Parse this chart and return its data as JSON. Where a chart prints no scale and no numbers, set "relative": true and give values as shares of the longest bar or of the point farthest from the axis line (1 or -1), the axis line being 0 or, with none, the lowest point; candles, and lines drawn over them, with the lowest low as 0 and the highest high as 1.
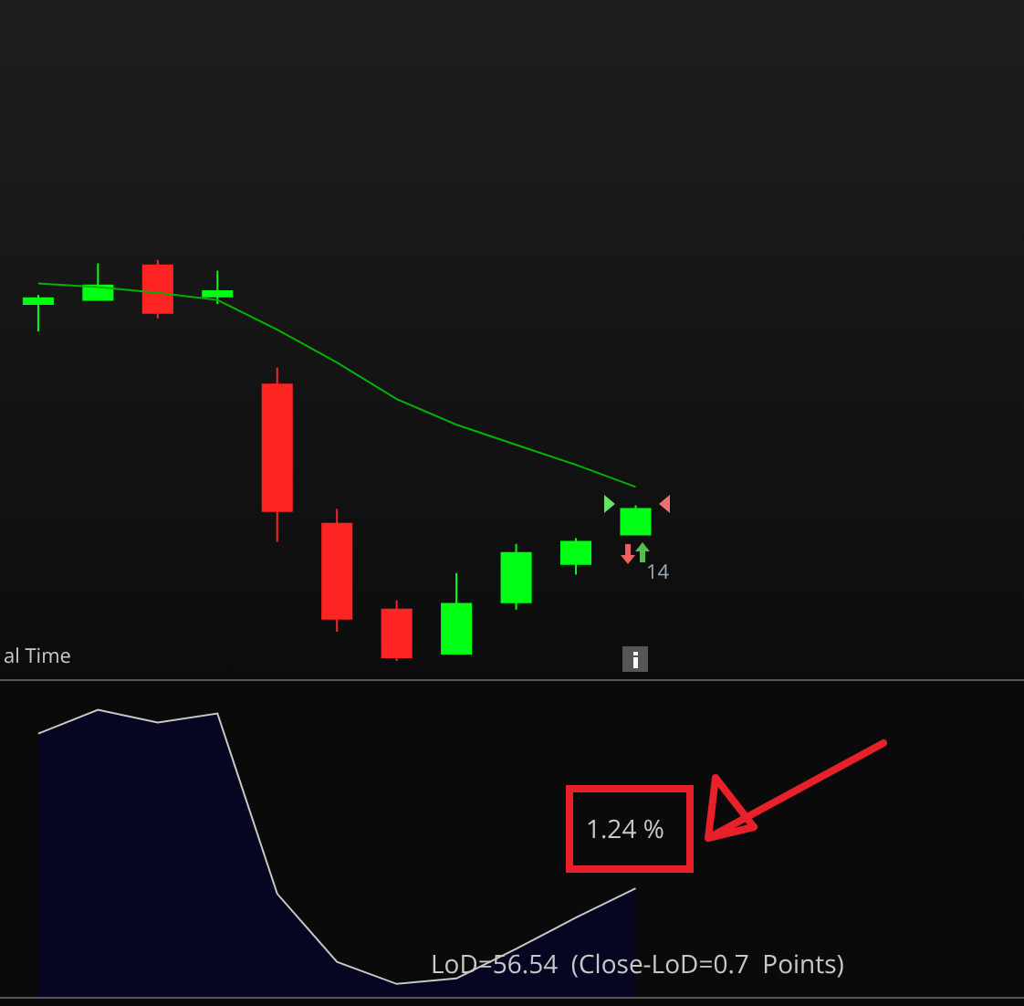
{
  "chart_data": [
    {
      "type": "candlestick",
      "relative": true,
      "categories": [
        null,
        null,
        null,
        null,
        null,
        null,
        null,
        null,
        null,
        null,
        null
      ],
      "ohlc": [
        [
          0.89,
          0.913,
          0.822,
          0.904
        ],
        [
          0.9,
          0.991,
          0.9,
          0.936
        ],
        [
          0.986,
          1,
          0.854,
          0.868
        ],
        [
          0.909,
          0.973,
          0.89,
          0.922
        ],
        [
          0.689,
          0.731,
          0.297,
          0.374
        ],
        [
          0.342,
          0.379,
          0.073,
          0.105
        ],
        [
          0.128,
          0.151,
          0,
          0.009
        ],
        [
          0.018,
          0.219,
          0.018,
          0.142
        ],
        [
          0.146,
          0.292,
          0.128,
          0.269
        ],
        [
          0.242,
          0.306,
          0.215,
          0.297
        ],
        [
          0.315,
          0.388,
          0.315,
          0.379
        ]
      ],
      "colors": [
        "#00ff14",
        "#00ff14",
        "#ff2424",
        "#00ff14",
        "#ff2424",
        "#ff2424",
        "#ff2424",
        "#00ff14",
        "#00ff14",
        "#00ff14",
        "#00ff14"
      ],
      "series": [
        {
          "type": "line",
          "color": "#00b400",
          "values": [
            0.941,
            0.932,
            0.918,
            0.9,
            0.826,
            0.744,
            0.653,
            0.589,
            0.539,
            0.489,
            0.434
          ]
        }
      ],
      "annotations": [
        "al Time",
        "14"
      ]
    },
    {
      "type": "area",
      "relative": true,
      "categories": [
        null,
        null,
        null,
        null,
        null,
        null,
        null,
        null,
        null,
        null,
        null
      ],
      "series": [
        {
          "color": "#c8c8c8",
          "values": [
            0.917,
            1,
            0.955,
            0.987,
            0.359,
            0.122,
            0.045,
            0.064,
            0.167,
            0.276,
            0.378
          ]
        }
      ],
      "annotations": [
        "1.24 %",
        "LoD=56.54  (Close-LoD=0.7  Points)"
      ]
    }
  ]
}
